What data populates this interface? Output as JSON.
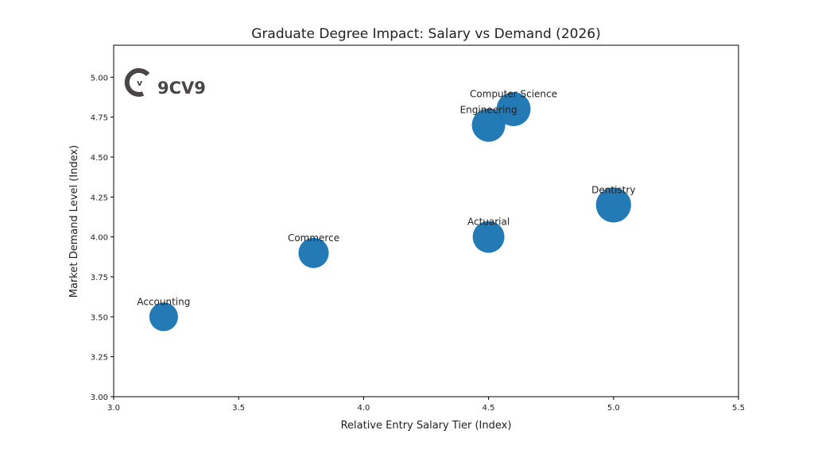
{
  "chart_data": {
    "type": "scatter",
    "title": "Graduate Degree Impact: Salary vs Demand (2026)",
    "xlabel": "Relative Entry Salary Tier (Index)",
    "ylabel": "Market Demand Level (Index)",
    "xlim": [
      3.0,
      5.5
    ],
    "ylim": [
      3.0,
      5.2
    ],
    "xticks": [
      "3.0",
      "3.5",
      "4.0",
      "4.5",
      "5.0",
      "5.5"
    ],
    "yticks": [
      "3.00",
      "3.25",
      "3.50",
      "3.75",
      "4.00",
      "4.25",
      "4.50",
      "4.75",
      "5.00"
    ],
    "grid": false,
    "color": "#1f77b4",
    "points": [
      {
        "label": "Accounting",
        "x": 3.2,
        "y": 3.5,
        "size": 1000
      },
      {
        "label": "Commerce",
        "x": 3.8,
        "y": 3.9,
        "size": 1120
      },
      {
        "label": "Actuarial",
        "x": 4.5,
        "y": 4.0,
        "size": 1230
      },
      {
        "label": "Dentistry",
        "x": 5.0,
        "y": 4.2,
        "size": 1500
      },
      {
        "label": "Engineering",
        "x": 4.5,
        "y": 4.7,
        "size": 1360
      },
      {
        "label": "Computer Science",
        "x": 4.6,
        "y": 4.8,
        "size": 1420
      }
    ]
  },
  "logo": {
    "text": "9CV9"
  }
}
